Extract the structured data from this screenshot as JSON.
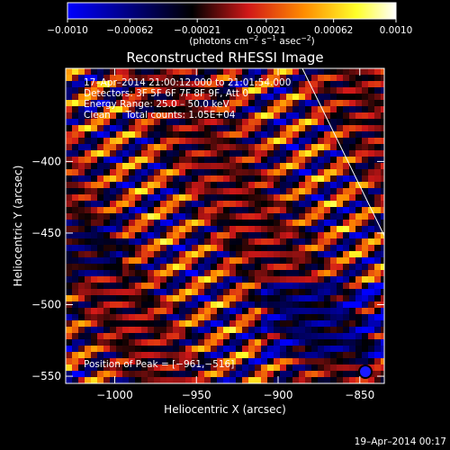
{
  "chart_data": {
    "type": "heatmap",
    "title": "Reconstructed RHESSI Image",
    "xlabel": "Heliocentric X (arcsec)",
    "ylabel": "Heliocentric Y (arcsec)",
    "xlim": [
      -1030,
      -835
    ],
    "ylim": [
      -555,
      -335
    ],
    "x_ticks": [
      -1000,
      -950,
      -900,
      -850
    ],
    "x_tick_labels": [
      "−1000",
      "−950",
      "−900",
      "−850"
    ],
    "y_ticks": [
      -400,
      -450,
      -500,
      -550
    ],
    "y_tick_labels": [
      "−400",
      "−450",
      "−500",
      "−550"
    ],
    "colorbar": {
      "range": [
        -0.001,
        0.001
      ],
      "tick_values": [
        -0.001,
        -0.00062,
        -0.00021,
        0.00021,
        0.00062,
        0.001
      ],
      "tick_labels": [
        "−0.0010",
        "−0.00062",
        "−0.00021",
        "0.00021",
        "0.00062",
        "0.0010"
      ],
      "label_prefix": "(photons cm",
      "label_exp1": "−2",
      "label_mid1": " s",
      "label_exp2": "−1",
      "label_mid2": " asec",
      "label_exp3": "−2",
      "label_suffix": ")"
    },
    "annotations": {
      "time_range": "17–Apr–2014 21:00:12.000 to 21:01:54.000",
      "detectors": "Detectors: 3F 5F 6F 7F 8F 9F, Att 0",
      "energy": "Energy Range: 25.0 – 50.0 keV",
      "clean": "Clean     Total counts: 1.05E+04",
      "peak": "Position of Peak = [−961,−516]"
    },
    "peak_position": [
      -961,
      -516
    ],
    "colormap": [
      "#0000ff",
      "#000000",
      "#d11818",
      "#ff8c00",
      "#ffff2a",
      "#ffffff"
    ],
    "limb_color": "#ffffff",
    "grid": false,
    "legend": "none"
  },
  "footer": {
    "timestamp": "19–Apr–2014 00:17"
  }
}
